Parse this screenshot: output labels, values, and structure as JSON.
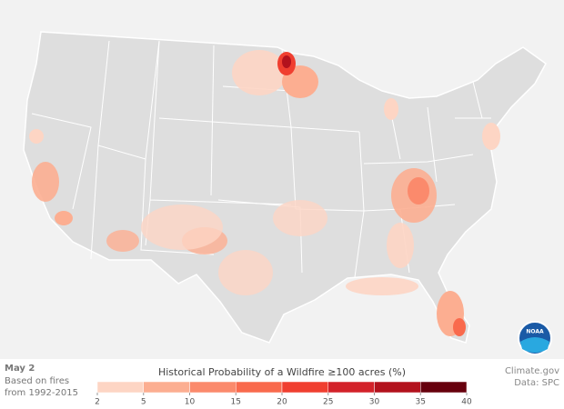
{
  "date": "May 2",
  "note_lines": [
    "Based on fires",
    "from 1992-2015"
  ],
  "credits": [
    "Climate.gov",
    "Data: SPC"
  ],
  "logo": "NOAA",
  "legend": {
    "title": "Historical Probability of a Wildfire ≥100 acres (%)",
    "ticks": [
      2,
      5,
      10,
      15,
      20,
      25,
      30,
      35,
      40
    ],
    "colors": [
      "#fdd5c4",
      "#fcae91",
      "#fb8a6c",
      "#f96a4d",
      "#f03f30",
      "#d3222a",
      "#b3121d",
      "#67000d"
    ]
  }
}
